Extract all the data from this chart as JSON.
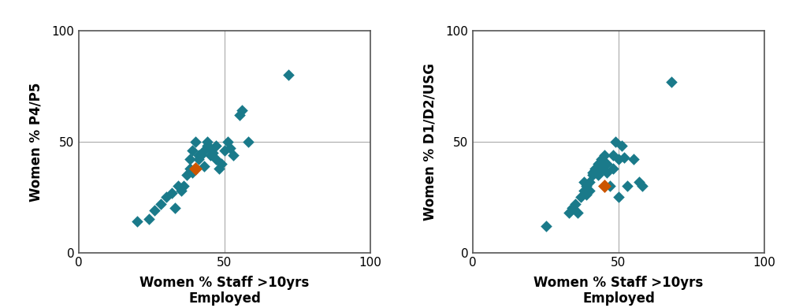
{
  "plot1": {
    "xlabel1": "Women % Staff >10yrs",
    "xlabel2": "Employed",
    "ylabel": "Women % P4/P5",
    "xlim": [
      0,
      100
    ],
    "ylim": [
      0,
      100
    ],
    "xticks": [
      0,
      50,
      100
    ],
    "yticks": [
      0,
      50,
      100
    ],
    "ref_x": 50,
    "ref_y": 50,
    "teal_points": [
      [
        20,
        14
      ],
      [
        24,
        15
      ],
      [
        26,
        19
      ],
      [
        28,
        22
      ],
      [
        30,
        25
      ],
      [
        32,
        27
      ],
      [
        33,
        20
      ],
      [
        34,
        30
      ],
      [
        35,
        28
      ],
      [
        36,
        30
      ],
      [
        37,
        35
      ],
      [
        38,
        38
      ],
      [
        38,
        42
      ],
      [
        39,
        36
      ],
      [
        39,
        46
      ],
      [
        40,
        50
      ],
      [
        41,
        44
      ],
      [
        41,
        42
      ],
      [
        42,
        44
      ],
      [
        43,
        39
      ],
      [
        43,
        46
      ],
      [
        44,
        48
      ],
      [
        44,
        50
      ],
      [
        45,
        44
      ],
      [
        45,
        47
      ],
      [
        46,
        45
      ],
      [
        47,
        42
      ],
      [
        47,
        48
      ],
      [
        48,
        38
      ],
      [
        49,
        40
      ],
      [
        50,
        46
      ],
      [
        51,
        50
      ],
      [
        52,
        47
      ],
      [
        53,
        44
      ],
      [
        55,
        62
      ],
      [
        56,
        64
      ],
      [
        58,
        50
      ],
      [
        72,
        80
      ]
    ],
    "orange_point": [
      40,
      38
    ]
  },
  "plot2": {
    "xlabel1": "Women % Staff >10yrs",
    "xlabel2": "Employed",
    "ylabel": "Women % D1/D2/USG",
    "xlim": [
      0,
      100
    ],
    "ylim": [
      0,
      100
    ],
    "xticks": [
      0,
      50,
      100
    ],
    "yticks": [
      0,
      50,
      100
    ],
    "ref_x": 50,
    "ref_y": 50,
    "teal_points": [
      [
        25,
        12
      ],
      [
        33,
        18
      ],
      [
        34,
        20
      ],
      [
        35,
        22
      ],
      [
        36,
        18
      ],
      [
        37,
        25
      ],
      [
        38,
        28
      ],
      [
        38,
        32
      ],
      [
        39,
        30
      ],
      [
        39,
        26
      ],
      [
        40,
        28
      ],
      [
        40,
        32
      ],
      [
        41,
        35
      ],
      [
        41,
        36
      ],
      [
        42,
        37
      ],
      [
        42,
        38
      ],
      [
        43,
        35
      ],
      [
        43,
        40
      ],
      [
        43,
        38
      ],
      [
        44,
        38
      ],
      [
        44,
        42
      ],
      [
        45,
        40
      ],
      [
        45,
        44
      ],
      [
        46,
        40
      ],
      [
        46,
        36
      ],
      [
        47,
        30
      ],
      [
        48,
        38
      ],
      [
        48,
        44
      ],
      [
        49,
        50
      ],
      [
        50,
        25
      ],
      [
        50,
        42
      ],
      [
        51,
        48
      ],
      [
        52,
        43
      ],
      [
        53,
        30
      ],
      [
        55,
        42
      ],
      [
        57,
        32
      ],
      [
        58,
        30
      ],
      [
        68,
        77
      ]
    ],
    "orange_point": [
      45,
      30
    ]
  },
  "teal_color": "#1a7a8a",
  "orange_color": "#cc5500",
  "marker_size": 55,
  "orange_marker_size": 75,
  "bg_color": "#ffffff",
  "ref_line_color": "#aaaaaa",
  "spine_color": "#555555",
  "tick_fontsize": 11,
  "label_fontsize": 12,
  "label_fontweight": "bold"
}
